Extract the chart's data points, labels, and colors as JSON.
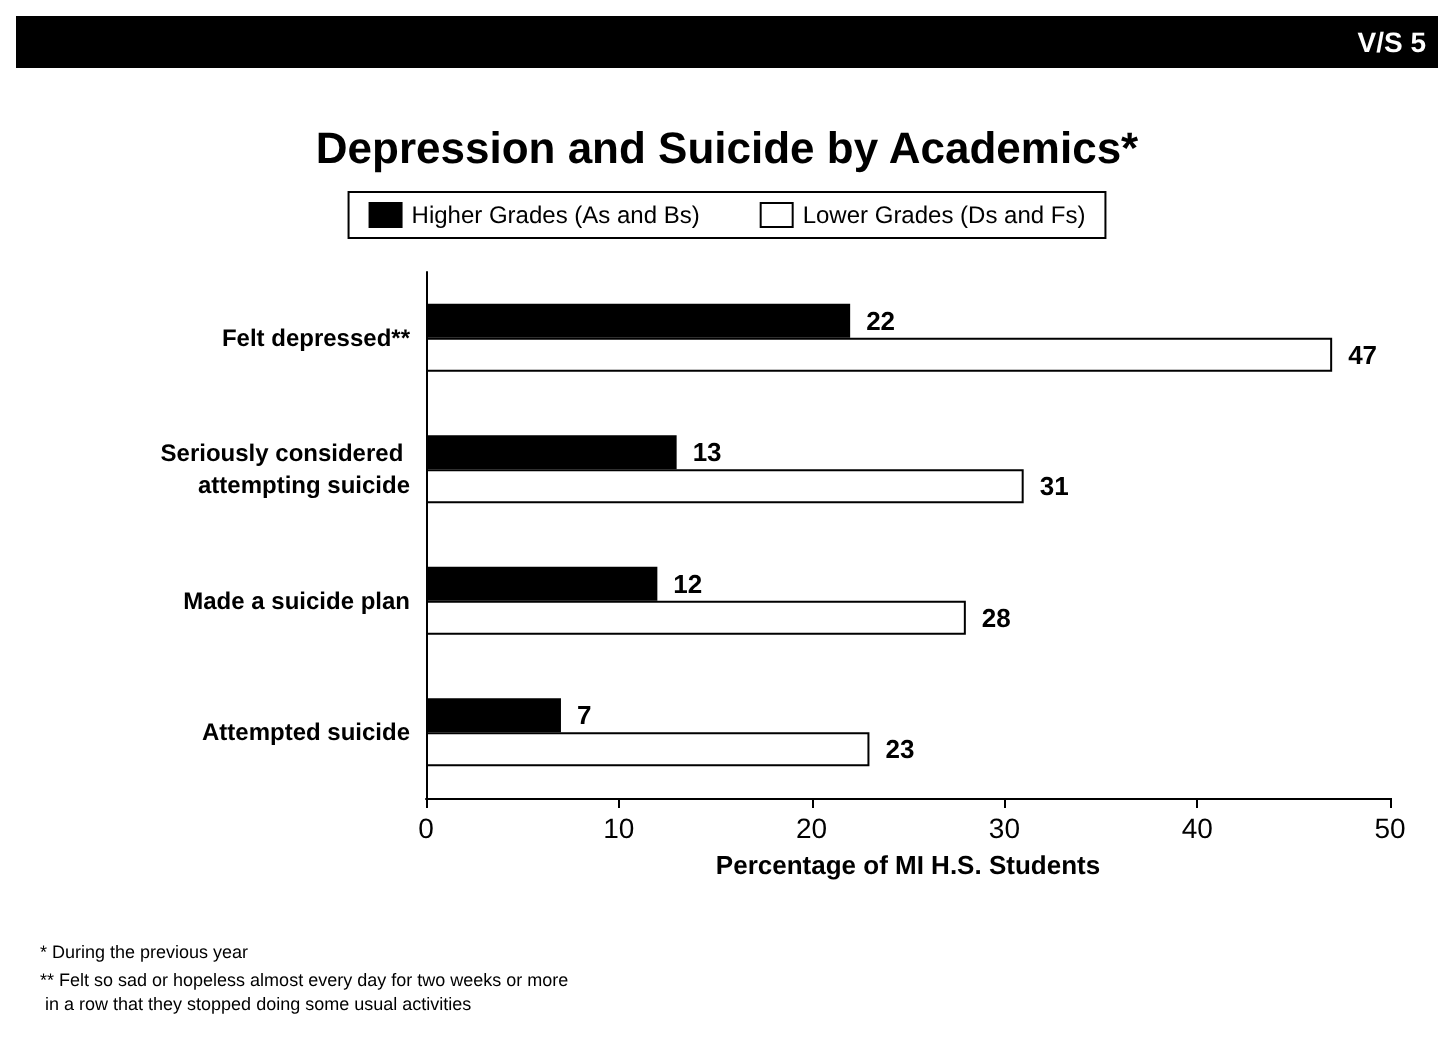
{
  "chart_data": {
    "type": "bar",
    "orientation": "horizontal",
    "title": "Depression and Suicide by Academics*",
    "xlabel": "Percentage of MI H.S. Students",
    "categories": [
      "Felt depressed**",
      "Seriously considered attempting suicide",
      "Made a suicide plan",
      "Attempted suicide"
    ],
    "series": [
      {
        "name": "Higher Grades (As and Bs)",
        "color": "#000000",
        "values": [
          22,
          13,
          12,
          7
        ]
      },
      {
        "name": "Lower Grades (Ds and Fs)",
        "color": "#ffffff",
        "values": [
          47,
          31,
          28,
          23
        ]
      }
    ],
    "xlim": [
      0,
      50
    ],
    "xticks": [
      0,
      10,
      20,
      30,
      40,
      50
    ],
    "data_labels": true,
    "legend": "top",
    "grid": false,
    "annotations": [
      "V/S 5",
      "* During the previous year",
      "** Felt so sad or hopeless almost every day for two weeks or more in a row that they stopped doing some usual activities"
    ]
  }
}
